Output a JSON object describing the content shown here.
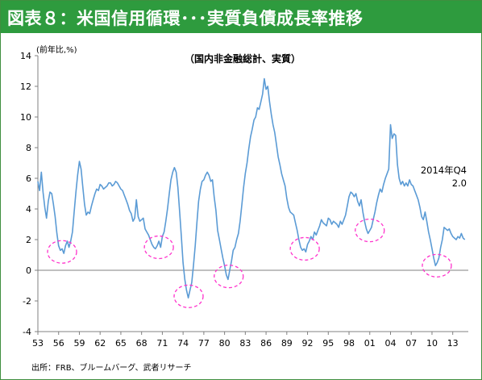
{
  "figure": {
    "title": "図表８：米国信用循環･･･実質負債成長率推移",
    "subtitle": "（国内非金融総計、実質）",
    "unit_label": "(前年比,%)",
    "source": "出所：FRB、ブルームバーグ、武者リサーチ",
    "annotation_line1": "2014年Q4",
    "annotation_line2": "2.0"
  },
  "colors": {
    "title_bar": "#2e9b3e",
    "title_text": "#ffffff",
    "line": "#5b9bd5",
    "circle": "#ff33cc",
    "axis": "#808080",
    "text": "#000000"
  },
  "chart_data": {
    "type": "line",
    "ylim": [
      -4,
      14
    ],
    "yticks": [
      14,
      12,
      10,
      8,
      6,
      4,
      2,
      0,
      -2,
      -4
    ],
    "xlim": [
      1953.0,
      2015.25
    ],
    "xticks": [
      "53",
      "56",
      "59",
      "62",
      "65",
      "68",
      "71",
      "74",
      "77",
      "80",
      "83",
      "86",
      "89",
      "92",
      "95",
      "98",
      "01",
      "04",
      "07",
      "10",
      "13"
    ],
    "xtick_years": [
      1953,
      1956,
      1959,
      1962,
      1965,
      1968,
      1971,
      1974,
      1977,
      1980,
      1983,
      1986,
      1989,
      1992,
      1995,
      1998,
      2001,
      2004,
      2007,
      2010,
      2013
    ],
    "grid": false,
    "legend": "none",
    "series": [
      {
        "points": [
          [
            1953.0,
            5.8
          ],
          [
            1953.25,
            5.2
          ],
          [
            1953.5,
            6.4
          ],
          [
            1953.75,
            5.1
          ],
          [
            1954.0,
            4.1
          ],
          [
            1954.25,
            3.4
          ],
          [
            1954.5,
            4.5
          ],
          [
            1954.75,
            5.1
          ],
          [
            1955.0,
            5.0
          ],
          [
            1955.25,
            4.3
          ],
          [
            1955.5,
            3.5
          ],
          [
            1955.75,
            2.4
          ],
          [
            1956.0,
            1.6
          ],
          [
            1956.25,
            1.3
          ],
          [
            1956.5,
            1.4
          ],
          [
            1956.75,
            1.1
          ],
          [
            1957.0,
            1.6
          ],
          [
            1957.25,
            1.9
          ],
          [
            1957.5,
            1.5
          ],
          [
            1957.75,
            1.9
          ],
          [
            1958.0,
            2.5
          ],
          [
            1958.25,
            3.8
          ],
          [
            1958.5,
            5.1
          ],
          [
            1958.75,
            6.2
          ],
          [
            1959.0,
            7.1
          ],
          [
            1959.25,
            6.6
          ],
          [
            1959.5,
            5.4
          ],
          [
            1959.75,
            4.3
          ],
          [
            1960.0,
            3.6
          ],
          [
            1960.25,
            3.8
          ],
          [
            1960.5,
            3.7
          ],
          [
            1960.75,
            4.2
          ],
          [
            1961.0,
            4.6
          ],
          [
            1961.25,
            5.0
          ],
          [
            1961.5,
            5.3
          ],
          [
            1961.75,
            5.2
          ],
          [
            1962.0,
            5.6
          ],
          [
            1962.25,
            5.5
          ],
          [
            1962.5,
            5.3
          ],
          [
            1962.75,
            5.4
          ],
          [
            1963.0,
            5.5
          ],
          [
            1963.25,
            5.7
          ],
          [
            1963.5,
            5.7
          ],
          [
            1963.75,
            5.5
          ],
          [
            1964.0,
            5.6
          ],
          [
            1964.25,
            5.8
          ],
          [
            1964.5,
            5.7
          ],
          [
            1964.75,
            5.5
          ],
          [
            1965.0,
            5.3
          ],
          [
            1965.25,
            5.2
          ],
          [
            1965.5,
            4.9
          ],
          [
            1965.75,
            4.6
          ],
          [
            1966.0,
            4.3
          ],
          [
            1966.25,
            3.9
          ],
          [
            1966.5,
            3.7
          ],
          [
            1966.75,
            3.2
          ],
          [
            1967.0,
            3.4
          ],
          [
            1967.25,
            4.6
          ],
          [
            1967.5,
            3.5
          ],
          [
            1967.75,
            3.2
          ],
          [
            1968.0,
            3.3
          ],
          [
            1968.25,
            3.4
          ],
          [
            1968.5,
            2.7
          ],
          [
            1968.75,
            2.5
          ],
          [
            1969.0,
            2.3
          ],
          [
            1969.25,
            2.0
          ],
          [
            1969.5,
            1.7
          ],
          [
            1969.75,
            1.5
          ],
          [
            1970.0,
            1.4
          ],
          [
            1970.25,
            1.6
          ],
          [
            1970.5,
            1.9
          ],
          [
            1970.75,
            1.5
          ],
          [
            1971.0,
            2.2
          ],
          [
            1971.25,
            2.5
          ],
          [
            1971.5,
            3.2
          ],
          [
            1971.75,
            4.0
          ],
          [
            1972.0,
            5.0
          ],
          [
            1972.25,
            5.9
          ],
          [
            1972.5,
            6.4
          ],
          [
            1972.75,
            6.7
          ],
          [
            1973.0,
            6.4
          ],
          [
            1973.25,
            5.4
          ],
          [
            1973.5,
            3.8
          ],
          [
            1973.75,
            2.2
          ],
          [
            1974.0,
            0.5
          ],
          [
            1974.25,
            -0.6
          ],
          [
            1974.5,
            -1.3
          ],
          [
            1974.75,
            -1.8
          ],
          [
            1975.0,
            -1.3
          ],
          [
            1975.25,
            -0.8
          ],
          [
            1975.5,
            0.3
          ],
          [
            1975.75,
            1.6
          ],
          [
            1976.0,
            3.1
          ],
          [
            1976.25,
            4.5
          ],
          [
            1976.5,
            5.3
          ],
          [
            1976.75,
            5.8
          ],
          [
            1977.0,
            5.9
          ],
          [
            1977.25,
            6.2
          ],
          [
            1977.5,
            6.4
          ],
          [
            1977.75,
            6.2
          ],
          [
            1978.0,
            5.8
          ],
          [
            1978.25,
            5.9
          ],
          [
            1978.5,
            4.8
          ],
          [
            1978.75,
            3.9
          ],
          [
            1979.0,
            2.6
          ],
          [
            1979.25,
            2.0
          ],
          [
            1979.5,
            1.4
          ],
          [
            1979.75,
            0.8
          ],
          [
            1980.0,
            0.3
          ],
          [
            1980.25,
            -0.3
          ],
          [
            1980.5,
            -0.6
          ],
          [
            1980.75,
            0.0
          ],
          [
            1981.0,
            0.6
          ],
          [
            1981.25,
            1.3
          ],
          [
            1981.5,
            1.5
          ],
          [
            1981.75,
            2.0
          ],
          [
            1982.0,
            2.4
          ],
          [
            1982.25,
            3.2
          ],
          [
            1982.5,
            4.3
          ],
          [
            1982.75,
            5.4
          ],
          [
            1983.0,
            6.3
          ],
          [
            1983.25,
            7.0
          ],
          [
            1983.5,
            7.9
          ],
          [
            1983.75,
            8.7
          ],
          [
            1984.0,
            9.2
          ],
          [
            1984.25,
            9.8
          ],
          [
            1984.5,
            10.0
          ],
          [
            1984.75,
            10.6
          ],
          [
            1985.0,
            10.5
          ],
          [
            1985.25,
            11.0
          ],
          [
            1985.5,
            11.5
          ],
          [
            1985.75,
            12.5
          ],
          [
            1986.0,
            11.8
          ],
          [
            1986.25,
            12.0
          ],
          [
            1986.5,
            11.0
          ],
          [
            1986.75,
            10.2
          ],
          [
            1987.0,
            9.5
          ],
          [
            1987.25,
            9.0
          ],
          [
            1987.5,
            8.2
          ],
          [
            1987.75,
            7.4
          ],
          [
            1988.0,
            6.9
          ],
          [
            1988.25,
            6.3
          ],
          [
            1988.5,
            5.9
          ],
          [
            1988.75,
            5.5
          ],
          [
            1989.0,
            4.7
          ],
          [
            1989.25,
            4.1
          ],
          [
            1989.5,
            3.8
          ],
          [
            1989.75,
            3.7
          ],
          [
            1990.0,
            3.6
          ],
          [
            1990.25,
            3.1
          ],
          [
            1990.5,
            2.6
          ],
          [
            1990.75,
            2.0
          ],
          [
            1991.0,
            1.5
          ],
          [
            1991.25,
            1.3
          ],
          [
            1991.5,
            1.4
          ],
          [
            1991.75,
            1.2
          ],
          [
            1992.0,
            1.7
          ],
          [
            1992.25,
            1.9
          ],
          [
            1992.5,
            2.2
          ],
          [
            1992.75,
            2.0
          ],
          [
            1993.0,
            2.5
          ],
          [
            1993.25,
            2.3
          ],
          [
            1993.5,
            2.6
          ],
          [
            1993.75,
            2.9
          ],
          [
            1994.0,
            3.3
          ],
          [
            1994.25,
            3.1
          ],
          [
            1994.5,
            3.0
          ],
          [
            1994.75,
            2.9
          ],
          [
            1995.0,
            3.4
          ],
          [
            1995.25,
            3.3
          ],
          [
            1995.5,
            3.0
          ],
          [
            1995.75,
            3.2
          ],
          [
            1996.0,
            3.1
          ],
          [
            1996.25,
            3.0
          ],
          [
            1996.5,
            2.8
          ],
          [
            1996.75,
            3.2
          ],
          [
            1997.0,
            3.0
          ],
          [
            1997.25,
            3.3
          ],
          [
            1997.5,
            3.6
          ],
          [
            1997.75,
            4.2
          ],
          [
            1998.0,
            4.8
          ],
          [
            1998.25,
            5.1
          ],
          [
            1998.5,
            5.0
          ],
          [
            1998.75,
            4.8
          ],
          [
            1999.0,
            5.0
          ],
          [
            1999.25,
            4.5
          ],
          [
            1999.5,
            4.2
          ],
          [
            1999.75,
            4.6
          ],
          [
            2000.0,
            3.8
          ],
          [
            2000.25,
            3.2
          ],
          [
            2000.5,
            2.7
          ],
          [
            2000.75,
            2.4
          ],
          [
            2001.0,
            2.6
          ],
          [
            2001.25,
            2.8
          ],
          [
            2001.5,
            3.3
          ],
          [
            2001.75,
            3.8
          ],
          [
            2002.0,
            4.4
          ],
          [
            2002.25,
            4.9
          ],
          [
            2002.5,
            5.3
          ],
          [
            2002.75,
            5.1
          ],
          [
            2003.0,
            5.6
          ],
          [
            2003.25,
            6.0
          ],
          [
            2003.5,
            6.3
          ],
          [
            2003.75,
            6.6
          ],
          [
            2004.0,
            9.5
          ],
          [
            2004.25,
            8.6
          ],
          [
            2004.5,
            8.9
          ],
          [
            2004.75,
            8.8
          ],
          [
            2005.0,
            6.9
          ],
          [
            2005.25,
            6.0
          ],
          [
            2005.5,
            5.6
          ],
          [
            2005.75,
            5.8
          ],
          [
            2006.0,
            5.5
          ],
          [
            2006.25,
            5.7
          ],
          [
            2006.5,
            5.5
          ],
          [
            2006.75,
            5.9
          ],
          [
            2007.0,
            5.6
          ],
          [
            2007.25,
            5.5
          ],
          [
            2007.5,
            5.2
          ],
          [
            2007.75,
            4.9
          ],
          [
            2008.0,
            4.6
          ],
          [
            2008.25,
            4.1
          ],
          [
            2008.5,
            3.5
          ],
          [
            2008.75,
            3.3
          ],
          [
            2009.0,
            3.8
          ],
          [
            2009.25,
            3.2
          ],
          [
            2009.5,
            2.5
          ],
          [
            2009.75,
            2.0
          ],
          [
            2010.0,
            1.4
          ],
          [
            2010.25,
            0.8
          ],
          [
            2010.5,
            0.3
          ],
          [
            2010.75,
            0.5
          ],
          [
            2011.0,
            0.8
          ],
          [
            2011.25,
            1.5
          ],
          [
            2011.5,
            2.0
          ],
          [
            2011.75,
            2.8
          ],
          [
            2012.0,
            2.7
          ],
          [
            2012.25,
            2.6
          ],
          [
            2012.5,
            2.7
          ],
          [
            2012.75,
            2.4
          ],
          [
            2013.0,
            2.2
          ],
          [
            2013.25,
            2.1
          ],
          [
            2013.5,
            2.0
          ],
          [
            2013.75,
            2.2
          ],
          [
            2014.0,
            2.1
          ],
          [
            2014.25,
            2.4
          ],
          [
            2014.5,
            2.1
          ],
          [
            2014.75,
            2.0
          ]
        ]
      }
    ],
    "highlight_troughs": [
      {
        "x": 1956.5,
        "y": 1.2
      },
      {
        "x": 1970.5,
        "y": 1.5
      },
      {
        "x": 1974.8,
        "y": -1.7
      },
      {
        "x": 1980.6,
        "y": -0.4
      },
      {
        "x": 1991.6,
        "y": 1.4
      },
      {
        "x": 2001.0,
        "y": 2.6
      },
      {
        "x": 2010.7,
        "y": 0.3
      }
    ]
  }
}
